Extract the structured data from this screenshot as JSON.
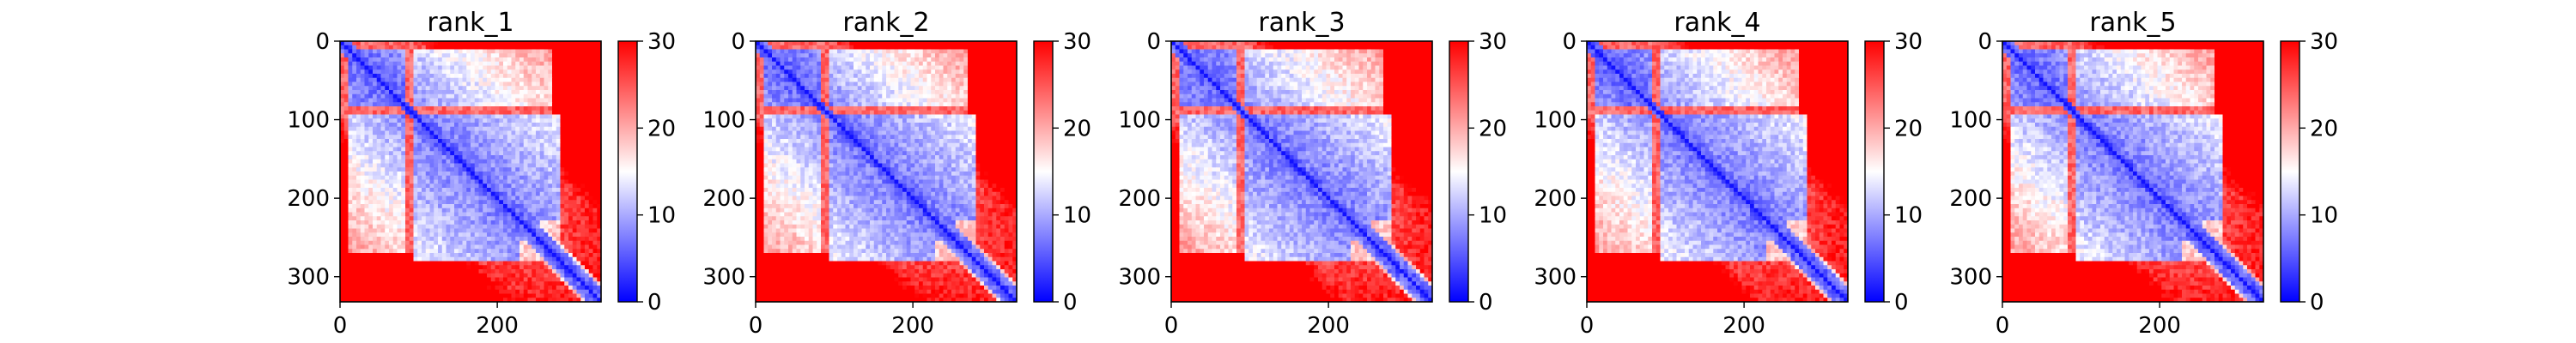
{
  "chart_data": [
    {
      "type": "heatmap",
      "title": "rank_1",
      "xlim": [
        0,
        332
      ],
      "ylim": [
        332,
        0
      ],
      "xticks": [
        0,
        200
      ],
      "yticks": [
        0,
        100,
        200,
        300
      ],
      "colorbar": {
        "min": 0,
        "max": 30,
        "ticks": [
          0,
          10,
          20,
          30
        ],
        "colormap": "bwr"
      },
      "matrix_size": 332
    },
    {
      "type": "heatmap",
      "title": "rank_2",
      "xlim": [
        0,
        332
      ],
      "ylim": [
        332,
        0
      ],
      "xticks": [
        0,
        200
      ],
      "yticks": [
        0,
        100,
        200,
        300
      ],
      "colorbar": {
        "min": 0,
        "max": 30,
        "ticks": [
          0,
          10,
          20,
          30
        ],
        "colormap": "bwr"
      },
      "matrix_size": 332
    },
    {
      "type": "heatmap",
      "title": "rank_3",
      "xlim": [
        0,
        332
      ],
      "ylim": [
        332,
        0
      ],
      "xticks": [
        0,
        200
      ],
      "yticks": [
        0,
        100,
        200,
        300
      ],
      "colorbar": {
        "min": 0,
        "max": 30,
        "ticks": [
          0,
          10,
          20,
          30
        ],
        "colormap": "bwr"
      },
      "matrix_size": 332
    },
    {
      "type": "heatmap",
      "title": "rank_4",
      "xlim": [
        0,
        332
      ],
      "ylim": [
        332,
        0
      ],
      "xticks": [
        0,
        200
      ],
      "yticks": [
        0,
        100,
        200,
        300
      ],
      "colorbar": {
        "min": 0,
        "max": 30,
        "ticks": [
          0,
          10,
          20,
          30
        ],
        "colormap": "bwr"
      },
      "matrix_size": 332
    },
    {
      "type": "heatmap",
      "title": "rank_5",
      "xlim": [
        0,
        332
      ],
      "ylim": [
        332,
        0
      ],
      "xticks": [
        0,
        200
      ],
      "yticks": [
        0,
        100,
        200,
        300
      ],
      "colorbar": {
        "min": 0,
        "max": 30,
        "ticks": [
          0,
          10,
          20,
          30
        ],
        "colormap": "bwr"
      },
      "matrix_size": 332
    }
  ],
  "colors": {
    "low": "#0000ff",
    "mid": "#ffffff",
    "high": "#ff0000",
    "axis": "#000000"
  }
}
